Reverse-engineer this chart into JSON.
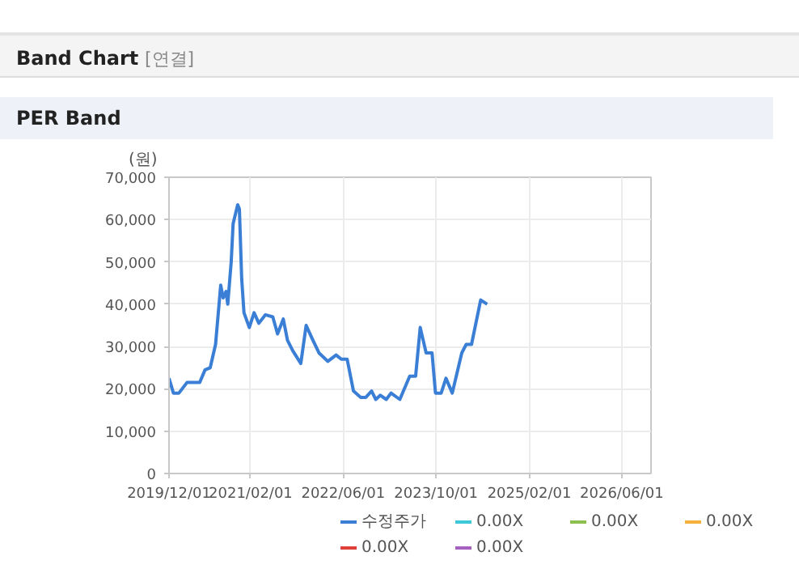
{
  "chart_data": {
    "type": "line",
    "title": "PER Band",
    "annotations": [
      "Band Chart",
      "[연결]"
    ],
    "ylabel": "(원)",
    "x": [
      "2019-12-01",
      "2019-12-24",
      "2020-01-22",
      "2020-03-04",
      "2020-04-16",
      "2020-05-10",
      "2020-06-07",
      "2020-07-04",
      "2020-08-01",
      "2020-08-28",
      "2020-09-10",
      "2020-09-25",
      "2020-10-04",
      "2020-10-22",
      "2020-11-01",
      "2020-11-25",
      "2020-12-04",
      "2020-12-16",
      "2020-12-28",
      "2021-01-25",
      "2021-02-19",
      "2021-03-16",
      "2021-04-19",
      "2021-05-28",
      "2021-06-22",
      "2021-07-22",
      "2021-08-13",
      "2021-09-10",
      "2021-10-22",
      "2021-11-19",
      "2021-12-19",
      "2022-01-25",
      "2022-03-13",
      "2022-04-25",
      "2022-05-22",
      "2022-06-22",
      "2022-07-25",
      "2022-09-01",
      "2022-09-28",
      "2022-10-28",
      "2022-11-19",
      "2022-12-13",
      "2023-01-13",
      "2023-02-07",
      "2023-03-25",
      "2023-05-16",
      "2023-06-16",
      "2023-07-10",
      "2023-08-10",
      "2023-09-10",
      "2023-09-28",
      "2023-10-28",
      "2023-11-22",
      "2023-12-25",
      "2024-02-13",
      "2024-03-07",
      "2024-04-04",
      "2024-05-22",
      "2024-06-25"
    ],
    "series": [
      {
        "name": "수정주가",
        "color": "#3a7fd5",
        "values": [
          22500,
          19000,
          19000,
          21500,
          21500,
          21500,
          24500,
          25000,
          30500,
          44500,
          41500,
          43000,
          40000,
          50000,
          59000,
          63500,
          62500,
          46000,
          38000,
          34500,
          38000,
          35500,
          37500,
          37000,
          33000,
          36500,
          31500,
          29000,
          26000,
          35000,
          32000,
          28500,
          26500,
          28000,
          27000,
          27000,
          19500,
          18000,
          18000,
          19500,
          17500,
          18500,
          17500,
          19000,
          17500,
          23000,
          23000,
          34500,
          28500,
          28500,
          19000,
          19000,
          22500,
          19000,
          28500,
          30500,
          30500,
          41000,
          40000
        ]
      },
      {
        "name": "0.00X",
        "color": "#3cc8d8",
        "values": [
          null,
          null,
          null,
          null,
          null,
          null,
          null,
          null,
          null,
          null,
          null,
          null,
          null,
          null,
          null,
          null,
          null,
          null,
          null,
          null,
          null,
          null,
          null,
          null,
          null,
          null,
          null,
          null,
          null,
          null,
          null,
          null,
          null,
          null,
          null,
          null,
          null,
          null,
          null,
          null,
          null,
          null,
          null,
          null,
          null,
          null,
          null,
          null,
          null,
          null,
          null,
          null,
          null,
          null,
          null,
          null,
          null,
          null,
          null
        ]
      },
      {
        "name": "0.00X",
        "color": "#8cc152",
        "values": [
          null,
          null,
          null,
          null,
          null,
          null,
          null,
          null,
          null,
          null,
          null,
          null,
          null,
          null,
          null,
          null,
          null,
          null,
          null,
          null,
          null,
          null,
          null,
          null,
          null,
          null,
          null,
          null,
          null,
          null,
          null,
          null,
          null,
          null,
          null,
          null,
          null,
          null,
          null,
          null,
          null,
          null,
          null,
          null,
          null,
          null,
          null,
          null,
          null,
          null,
          null,
          null,
          null,
          null,
          null,
          null,
          null,
          null,
          null
        ]
      },
      {
        "name": "0.00X",
        "color": "#f6b03c",
        "values": [
          null,
          null,
          null,
          null,
          null,
          null,
          null,
          null,
          null,
          null,
          null,
          null,
          null,
          null,
          null,
          null,
          null,
          null,
          null,
          null,
          null,
          null,
          null,
          null,
          null,
          null,
          null,
          null,
          null,
          null,
          null,
          null,
          null,
          null,
          null,
          null,
          null,
          null,
          null,
          null,
          null,
          null,
          null,
          null,
          null,
          null,
          null,
          null,
          null,
          null,
          null,
          null,
          null,
          null,
          null,
          null,
          null,
          null,
          null
        ]
      },
      {
        "name": "0.00X",
        "color": "#e0403a",
        "values": [
          null,
          null,
          null,
          null,
          null,
          null,
          null,
          null,
          null,
          null,
          null,
          null,
          null,
          null,
          null,
          null,
          null,
          null,
          null,
          null,
          null,
          null,
          null,
          null,
          null,
          null,
          null,
          null,
          null,
          null,
          null,
          null,
          null,
          null,
          null,
          null,
          null,
          null,
          null,
          null,
          null,
          null,
          null,
          null,
          null,
          null,
          null,
          null,
          null,
          null,
          null,
          null,
          null,
          null,
          null,
          null,
          null,
          null,
          null
        ]
      },
      {
        "name": "0.00X",
        "color": "#a660c0",
        "values": [
          null,
          null,
          null,
          null,
          null,
          null,
          null,
          null,
          null,
          null,
          null,
          null,
          null,
          null,
          null,
          null,
          null,
          null,
          null,
          null,
          null,
          null,
          null,
          null,
          null,
          null,
          null,
          null,
          null,
          null,
          null,
          null,
          null,
          null,
          null,
          null,
          null,
          null,
          null,
          null,
          null,
          null,
          null,
          null,
          null,
          null,
          null,
          null,
          null,
          null,
          null,
          null,
          null,
          null,
          null,
          null,
          null,
          null,
          null
        ]
      }
    ],
    "xlim": [
      "2019-12-01",
      "2026-11-01"
    ],
    "xticks": [
      {
        "value": "2019-12-01",
        "label": "2019/12/01"
      },
      {
        "value": "2021-02-01",
        "label": "2021/02/01"
      },
      {
        "value": "2022-06-01",
        "label": "2022/06/01"
      },
      {
        "value": "2023-10-01",
        "label": "2023/10/01"
      },
      {
        "value": "2025-02-01",
        "label": "2025/02/01"
      },
      {
        "value": "2026-06-01",
        "label": "2026/06/01"
      }
    ],
    "ylim": [
      0,
      70000
    ],
    "yticks": [
      {
        "value": 0,
        "label": "0"
      },
      {
        "value": 10000,
        "label": "10,000"
      },
      {
        "value": 20000,
        "label": "20,000"
      },
      {
        "value": 30000,
        "label": "30,000"
      },
      {
        "value": 40000,
        "label": "40,000"
      },
      {
        "value": 50000,
        "label": "50,000"
      },
      {
        "value": 60000,
        "label": "60,000"
      },
      {
        "value": 70000,
        "label": "70,000"
      }
    ],
    "grid": true,
    "legend": "bottom"
  }
}
